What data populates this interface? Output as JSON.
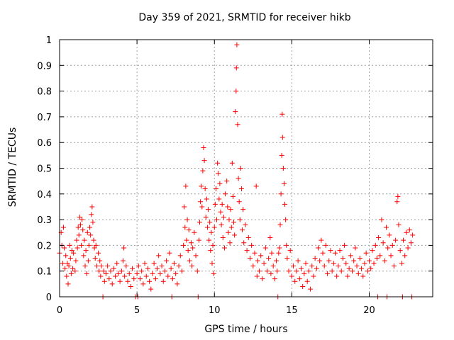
{
  "chart_data": {
    "type": "scatter",
    "title": "Day 359 of 2021, SRMTID for receiver hikb",
    "xlabel": "GPS time / hours",
    "ylabel": "SRMTID / TECUs",
    "xlim": [
      0,
      24.1
    ],
    "ylim": [
      0,
      1
    ],
    "xticks": [
      0,
      5,
      10,
      15,
      20
    ],
    "xtick_labels": [
      "0",
      "5",
      "10",
      "15",
      "20"
    ],
    "yticks": [
      0,
      0.1,
      0.2,
      0.3,
      0.4,
      0.5,
      0.6,
      0.7,
      0.8,
      0.9,
      1
    ],
    "ytick_labels": [
      "0",
      "0.1",
      "0.2",
      "0.3",
      "0.4",
      "0.5",
      "0.6",
      "0.7",
      "0.8",
      "0.9",
      "1"
    ],
    "grid": true,
    "marker": "+",
    "color": "#ff0000",
    "series": [
      {
        "name": "SRMTID hikb",
        "points": [
          [
            0.0,
            0.17
          ],
          [
            0.1,
            0.25
          ],
          [
            0.15,
            0.2
          ],
          [
            0.2,
            0.13
          ],
          [
            0.25,
            0.27
          ],
          [
            0.3,
            0.19
          ],
          [
            0.35,
            0.11
          ],
          [
            0.4,
            0.16
          ],
          [
            0.45,
            0.08
          ],
          [
            0.5,
            0.13
          ],
          [
            0.55,
            0.05
          ],
          [
            0.6,
            0.12
          ],
          [
            0.65,
            0.2
          ],
          [
            0.7,
            0.15
          ],
          [
            0.75,
            0.09
          ],
          [
            0.8,
            0.18
          ],
          [
            0.85,
            0.11
          ],
          [
            0.9,
            0.17
          ],
          [
            1.0,
            0.1
          ],
          [
            1.05,
            0.14
          ],
          [
            1.1,
            0.22
          ],
          [
            1.15,
            0.19
          ],
          [
            1.2,
            0.27
          ],
          [
            1.25,
            0.24
          ],
          [
            1.3,
            0.31
          ],
          [
            1.35,
            0.28
          ],
          [
            1.4,
            0.2
          ],
          [
            1.45,
            0.3
          ],
          [
            1.5,
            0.26
          ],
          [
            1.55,
            0.16
          ],
          [
            1.6,
            0.22
          ],
          [
            1.65,
            0.12
          ],
          [
            1.7,
            0.18
          ],
          [
            1.75,
            0.09
          ],
          [
            1.8,
            0.25
          ],
          [
            1.85,
            0.14
          ],
          [
            1.9,
            0.2
          ],
          [
            1.95,
            0.27
          ],
          [
            2.0,
            0.24
          ],
          [
            2.05,
            0.32
          ],
          [
            2.1,
            0.35
          ],
          [
            2.15,
            0.29
          ],
          [
            2.2,
            0.22
          ],
          [
            2.25,
            0.19
          ],
          [
            2.3,
            0.15
          ],
          [
            2.35,
            0.2
          ],
          [
            2.4,
            0.12
          ],
          [
            2.5,
            0.17
          ],
          [
            2.55,
            0.1
          ],
          [
            2.6,
            0.14
          ],
          [
            2.65,
            0.08
          ],
          [
            2.7,
            0.12
          ],
          [
            2.8,
            0.0
          ],
          [
            2.85,
            0.1
          ],
          [
            2.9,
            0.06
          ],
          [
            3.0,
            0.09
          ],
          [
            3.1,
            0.12
          ],
          [
            3.2,
            0.07
          ],
          [
            3.3,
            0.1
          ],
          [
            3.4,
            0.05
          ],
          [
            3.5,
            0.11
          ],
          [
            3.6,
            0.08
          ],
          [
            3.7,
            0.13
          ],
          [
            3.8,
            0.09
          ],
          [
            3.9,
            0.06
          ],
          [
            4.0,
            0.1
          ],
          [
            4.1,
            0.14
          ],
          [
            4.15,
            0.19
          ],
          [
            4.2,
            0.08
          ],
          [
            4.3,
            0.12
          ],
          [
            4.4,
            0.06
          ],
          [
            4.5,
            0.09
          ],
          [
            4.6,
            0.04
          ],
          [
            4.7,
            0.11
          ],
          [
            4.8,
            0.07
          ],
          [
            4.9,
            0.0
          ],
          [
            5.0,
            0.09
          ],
          [
            5.05,
            0.0
          ],
          [
            5.1,
            0.12
          ],
          [
            5.2,
            0.07
          ],
          [
            5.3,
            0.1
          ],
          [
            5.4,
            0.05
          ],
          [
            5.5,
            0.13
          ],
          [
            5.6,
            0.08
          ],
          [
            5.7,
            0.11
          ],
          [
            5.8,
            0.06
          ],
          [
            5.9,
            0.03
          ],
          [
            6.0,
            0.09
          ],
          [
            6.1,
            0.13
          ],
          [
            6.2,
            0.07
          ],
          [
            6.3,
            0.11
          ],
          [
            6.4,
            0.16
          ],
          [
            6.5,
            0.09
          ],
          [
            6.6,
            0.12
          ],
          [
            6.7,
            0.06
          ],
          [
            6.8,
            0.1
          ],
          [
            6.9,
            0.14
          ],
          [
            7.0,
            0.08
          ],
          [
            7.1,
            0.17
          ],
          [
            7.2,
            0.11
          ],
          [
            7.25,
            0.0
          ],
          [
            7.3,
            0.07
          ],
          [
            7.4,
            0.13
          ],
          [
            7.5,
            0.09
          ],
          [
            7.6,
            0.05
          ],
          [
            7.7,
            0.12
          ],
          [
            7.8,
            0.16
          ],
          [
            7.9,
            0.1
          ],
          [
            8.0,
            0.2
          ],
          [
            8.05,
            0.35
          ],
          [
            8.1,
            0.27
          ],
          [
            8.15,
            0.43
          ],
          [
            8.2,
            0.22
          ],
          [
            8.25,
            0.3
          ],
          [
            8.3,
            0.18
          ],
          [
            8.35,
            0.26
          ],
          [
            8.4,
            0.14
          ],
          [
            8.5,
            0.21
          ],
          [
            8.55,
            0.12
          ],
          [
            8.6,
            0.19
          ],
          [
            8.7,
            0.25
          ],
          [
            8.8,
            0.16
          ],
          [
            8.9,
            0.1
          ],
          [
            8.95,
            0.0
          ],
          [
            9.0,
            0.22
          ],
          [
            9.05,
            0.29
          ],
          [
            9.1,
            0.37
          ],
          [
            9.15,
            0.43
          ],
          [
            9.2,
            0.35
          ],
          [
            9.25,
            0.49
          ],
          [
            9.3,
            0.58
          ],
          [
            9.35,
            0.53
          ],
          [
            9.4,
            0.42
          ],
          [
            9.45,
            0.31
          ],
          [
            9.5,
            0.38
          ],
          [
            9.55,
            0.27
          ],
          [
            9.6,
            0.34
          ],
          [
            9.65,
            0.22
          ],
          [
            9.7,
            0.29
          ],
          [
            9.75,
            0.18
          ],
          [
            9.8,
            0.25
          ],
          [
            9.85,
            0.13
          ],
          [
            9.9,
            0.2
          ],
          [
            9.95,
            0.09
          ],
          [
            10.0,
            0.27
          ],
          [
            10.05,
            0.36
          ],
          [
            10.1,
            0.42
          ],
          [
            10.15,
            0.3
          ],
          [
            10.2,
            0.52
          ],
          [
            10.25,
            0.48
          ],
          [
            10.3,
            0.38
          ],
          [
            10.35,
            0.44
          ],
          [
            10.4,
            0.33
          ],
          [
            10.45,
            0.28
          ],
          [
            10.5,
            0.36
          ],
          [
            10.55,
            0.23
          ],
          [
            10.6,
            0.31
          ],
          [
            10.65,
            0.19
          ],
          [
            10.7,
            0.4
          ],
          [
            10.8,
            0.45
          ],
          [
            10.85,
            0.35
          ],
          [
            10.9,
            0.25
          ],
          [
            10.95,
            0.3
          ],
          [
            11.0,
            0.21
          ],
          [
            11.05,
            0.34
          ],
          [
            11.1,
            0.27
          ],
          [
            11.15,
            0.52
          ],
          [
            11.2,
            0.39
          ],
          [
            11.25,
            0.29
          ],
          [
            11.3,
            0.24
          ],
          [
            11.35,
            0.72
          ],
          [
            11.4,
            0.8
          ],
          [
            11.42,
            0.89
          ],
          [
            11.45,
            0.98
          ],
          [
            11.5,
            0.67
          ],
          [
            11.55,
            0.46
          ],
          [
            11.6,
            0.37
          ],
          [
            11.65,
            0.3
          ],
          [
            11.7,
            0.5
          ],
          [
            11.75,
            0.42
          ],
          [
            11.8,
            0.26
          ],
          [
            11.85,
            0.34
          ],
          [
            11.9,
            0.21
          ],
          [
            12.0,
            0.28
          ],
          [
            12.1,
            0.18
          ],
          [
            12.2,
            0.23
          ],
          [
            12.3,
            0.15
          ],
          [
            12.4,
            0.2
          ],
          [
            12.5,
            0.12
          ],
          [
            12.6,
            0.17
          ],
          [
            12.7,
            0.43
          ],
          [
            12.75,
            0.08
          ],
          [
            12.8,
            0.14
          ],
          [
            12.9,
            0.1
          ],
          [
            13.0,
            0.16
          ],
          [
            13.1,
            0.07
          ],
          [
            13.2,
            0.13
          ],
          [
            13.3,
            0.19
          ],
          [
            13.4,
            0.1
          ],
          [
            13.5,
            0.15
          ],
          [
            13.6,
            0.23
          ],
          [
            13.65,
            0.09
          ],
          [
            13.7,
            0.17
          ],
          [
            13.8,
            0.12
          ],
          [
            13.9,
            0.07
          ],
          [
            14.0,
            0.14
          ],
          [
            14.05,
            0.1
          ],
          [
            14.1,
            0.0
          ],
          [
            14.15,
            0.17
          ],
          [
            14.2,
            0.19
          ],
          [
            14.25,
            0.28
          ],
          [
            14.3,
            0.4
          ],
          [
            14.35,
            0.55
          ],
          [
            14.38,
            0.71
          ],
          [
            14.4,
            0.62
          ],
          [
            14.45,
            0.5
          ],
          [
            14.5,
            0.44
          ],
          [
            14.55,
            0.36
          ],
          [
            14.6,
            0.3
          ],
          [
            14.65,
            0.2
          ],
          [
            14.7,
            0.15
          ],
          [
            14.8,
            0.1
          ],
          [
            14.9,
            0.18
          ],
          [
            15.0,
            0.08
          ],
          [
            15.1,
            0.12
          ],
          [
            15.2,
            0.06
          ],
          [
            15.3,
            0.1
          ],
          [
            15.4,
            0.14
          ],
          [
            15.5,
            0.07
          ],
          [
            15.6,
            0.11
          ],
          [
            15.7,
            0.04
          ],
          [
            15.8,
            0.09
          ],
          [
            15.9,
            0.13
          ],
          [
            16.0,
            0.06
          ],
          [
            16.1,
            0.1
          ],
          [
            16.2,
            0.03
          ],
          [
            16.3,
            0.12
          ],
          [
            16.4,
            0.08
          ],
          [
            16.5,
            0.15
          ],
          [
            16.6,
            0.11
          ],
          [
            16.7,
            0.19
          ],
          [
            16.8,
            0.14
          ],
          [
            16.9,
            0.22
          ],
          [
            17.0,
            0.17
          ],
          [
            17.1,
            0.12
          ],
          [
            17.2,
            0.2
          ],
          [
            17.3,
            0.09
          ],
          [
            17.4,
            0.14
          ],
          [
            17.5,
            0.18
          ],
          [
            17.6,
            0.1
          ],
          [
            17.7,
            0.13
          ],
          [
            17.8,
            0.17
          ],
          [
            17.9,
            0.08
          ],
          [
            18.0,
            0.12
          ],
          [
            18.1,
            0.18
          ],
          [
            18.2,
            0.1
          ],
          [
            18.3,
            0.15
          ],
          [
            18.4,
            0.2
          ],
          [
            18.5,
            0.13
          ],
          [
            18.6,
            0.08
          ],
          [
            18.7,
            0.11
          ],
          [
            18.8,
            0.16
          ],
          [
            18.9,
            0.1
          ],
          [
            19.0,
            0.14
          ],
          [
            19.1,
            0.19
          ],
          [
            19.2,
            0.12
          ],
          [
            19.3,
            0.09
          ],
          [
            19.4,
            0.15
          ],
          [
            19.5,
            0.11
          ],
          [
            19.6,
            0.08
          ],
          [
            19.7,
            0.13
          ],
          [
            19.8,
            0.17
          ],
          [
            19.9,
            0.1
          ],
          [
            20.0,
            0.14
          ],
          [
            20.1,
            0.11
          ],
          [
            20.2,
            0.18
          ],
          [
            20.3,
            0.13
          ],
          [
            20.4,
            0.2
          ],
          [
            20.5,
            0.15
          ],
          [
            20.55,
            0.0
          ],
          [
            20.6,
            0.23
          ],
          [
            20.7,
            0.16
          ],
          [
            20.8,
            0.3
          ],
          [
            20.9,
            0.21
          ],
          [
            21.0,
            0.14
          ],
          [
            21.1,
            0.27
          ],
          [
            21.15,
            0.0
          ],
          [
            21.2,
            0.19
          ],
          [
            21.3,
            0.24
          ],
          [
            21.4,
            0.16
          ],
          [
            21.5,
            0.2
          ],
          [
            21.6,
            0.12
          ],
          [
            21.7,
            0.22
          ],
          [
            21.8,
            0.37
          ],
          [
            21.85,
            0.39
          ],
          [
            21.9,
            0.28
          ],
          [
            22.0,
            0.18
          ],
          [
            22.1,
            0.13
          ],
          [
            22.15,
            0.0
          ],
          [
            22.2,
            0.22
          ],
          [
            22.3,
            0.16
          ],
          [
            22.4,
            0.25
          ],
          [
            22.5,
            0.19
          ],
          [
            22.6,
            0.26
          ],
          [
            22.7,
            0.21
          ],
          [
            22.75,
            0.0
          ],
          [
            22.8,
            0.24
          ]
        ]
      }
    ]
  }
}
